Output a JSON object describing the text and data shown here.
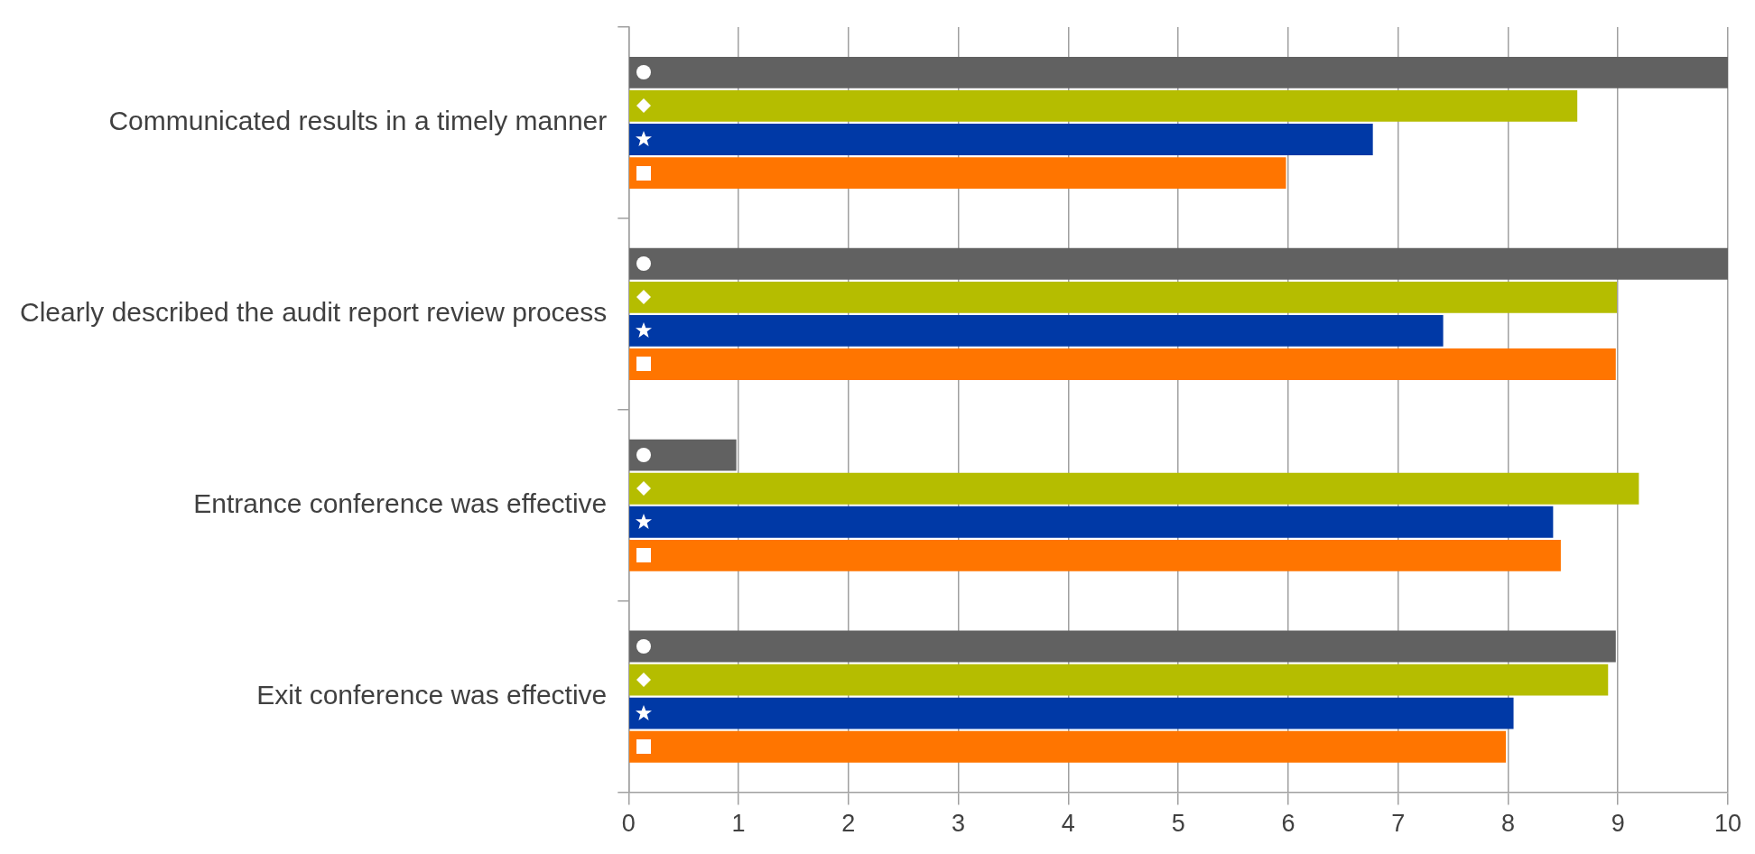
{
  "chart_data": {
    "type": "bar",
    "orientation": "horizontal",
    "grid": "x",
    "legend": false,
    "categories": [
      "Communicated results in a timely manner",
      "Clearly described the audit report review process",
      "Entrance conference was effective",
      "Exit conference was effective"
    ],
    "series": [
      {
        "color": "#616161",
        "marker": "circle",
        "values": [
          10,
          10,
          0.98,
          8.98
        ]
      },
      {
        "color": "#b5bd00",
        "marker": "diamond",
        "values": [
          8.63,
          8.99,
          9.19,
          8.91
        ]
      },
      {
        "color": "#0039a6",
        "marker": "star",
        "values": [
          6.77,
          7.41,
          8.41,
          8.05
        ]
      },
      {
        "color": "#ff7500",
        "marker": "square",
        "values": [
          5.98,
          8.98,
          8.48,
          7.98
        ]
      }
    ],
    "xlim": [
      0,
      10
    ],
    "xticks": [
      0,
      1,
      2,
      3,
      4,
      5,
      6,
      7,
      8,
      9,
      10
    ]
  }
}
